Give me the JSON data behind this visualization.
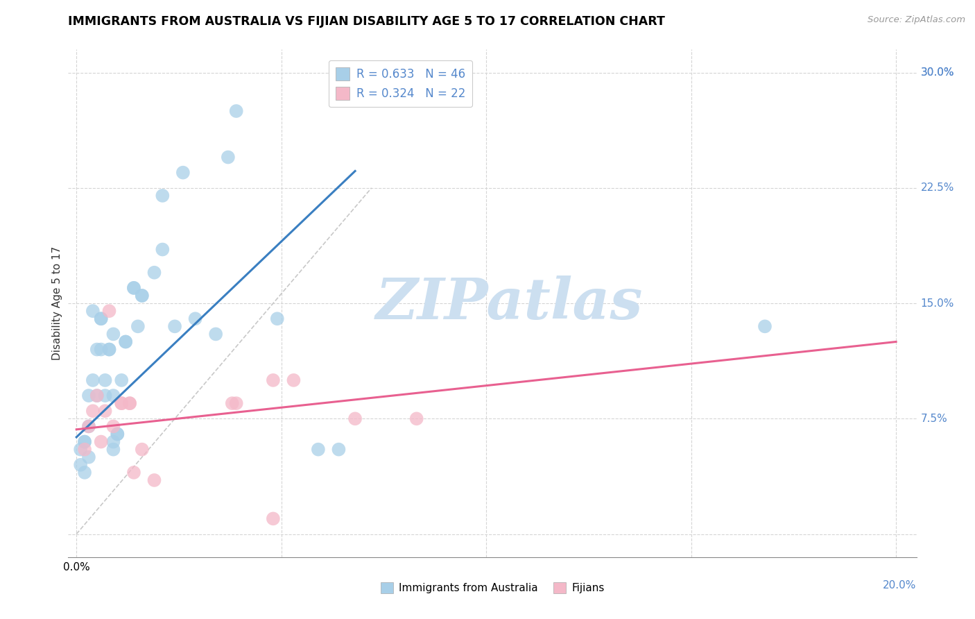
{
  "title": "IMMIGRANTS FROM AUSTRALIA VS FIJIAN DISABILITY AGE 5 TO 17 CORRELATION CHART",
  "source": "Source: ZipAtlas.com",
  "ylabel": "Disability Age 5 to 17",
  "xlim": [
    -0.002,
    0.205
  ],
  "ylim": [
    -0.015,
    0.315
  ],
  "legend1_label": "R = 0.633   N = 46",
  "legend2_label": "R = 0.324   N = 22",
  "legend_bottom1": "Immigrants from Australia",
  "legend_bottom2": "Fijians",
  "blue_color": "#a8cfe8",
  "pink_color": "#f4b8c8",
  "blue_line_color": "#3a7fc1",
  "pink_line_color": "#e86090",
  "diagonal_color": "#c8c8c8",
  "label_color": "#5588cc",
  "watermark_color": "#ccdff0",
  "blue_scatter": [
    [
      0.001,
      0.055
    ],
    [
      0.001,
      0.045
    ],
    [
      0.002,
      0.06
    ],
    [
      0.002,
      0.04
    ],
    [
      0.002,
      0.06
    ],
    [
      0.003,
      0.07
    ],
    [
      0.003,
      0.09
    ],
    [
      0.003,
      0.05
    ],
    [
      0.004,
      0.145
    ],
    [
      0.004,
      0.1
    ],
    [
      0.005,
      0.09
    ],
    [
      0.005,
      0.12
    ],
    [
      0.006,
      0.12
    ],
    [
      0.006,
      0.14
    ],
    [
      0.006,
      0.14
    ],
    [
      0.007,
      0.1
    ],
    [
      0.007,
      0.09
    ],
    [
      0.008,
      0.12
    ],
    [
      0.008,
      0.12
    ],
    [
      0.009,
      0.13
    ],
    [
      0.009,
      0.09
    ],
    [
      0.009,
      0.055
    ],
    [
      0.009,
      0.06
    ],
    [
      0.01,
      0.065
    ],
    [
      0.01,
      0.065
    ],
    [
      0.011,
      0.1
    ],
    [
      0.012,
      0.125
    ],
    [
      0.012,
      0.125
    ],
    [
      0.014,
      0.16
    ],
    [
      0.014,
      0.16
    ],
    [
      0.015,
      0.135
    ],
    [
      0.016,
      0.155
    ],
    [
      0.016,
      0.155
    ],
    [
      0.019,
      0.17
    ],
    [
      0.021,
      0.185
    ],
    [
      0.021,
      0.22
    ],
    [
      0.024,
      0.135
    ],
    [
      0.026,
      0.235
    ],
    [
      0.029,
      0.14
    ],
    [
      0.034,
      0.13
    ],
    [
      0.037,
      0.245
    ],
    [
      0.039,
      0.275
    ],
    [
      0.049,
      0.14
    ],
    [
      0.059,
      0.055
    ],
    [
      0.064,
      0.055
    ],
    [
      0.168,
      0.135
    ]
  ],
  "pink_scatter": [
    [
      0.002,
      0.055
    ],
    [
      0.003,
      0.07
    ],
    [
      0.004,
      0.08
    ],
    [
      0.005,
      0.09
    ],
    [
      0.006,
      0.06
    ],
    [
      0.007,
      0.08
    ],
    [
      0.008,
      0.145
    ],
    [
      0.009,
      0.07
    ],
    [
      0.011,
      0.085
    ],
    [
      0.011,
      0.085
    ],
    [
      0.013,
      0.085
    ],
    [
      0.013,
      0.085
    ],
    [
      0.014,
      0.04
    ],
    [
      0.016,
      0.055
    ],
    [
      0.019,
      0.035
    ],
    [
      0.038,
      0.085
    ],
    [
      0.039,
      0.085
    ],
    [
      0.048,
      0.1
    ],
    [
      0.053,
      0.1
    ],
    [
      0.068,
      0.075
    ],
    [
      0.083,
      0.075
    ],
    [
      0.048,
      0.01
    ]
  ],
  "blue_reg": [
    0.0,
    0.063,
    0.068,
    0.236
  ],
  "pink_reg": [
    0.0,
    0.068,
    0.2,
    0.125
  ],
  "diag": [
    0.0,
    0.0,
    0.072,
    0.225
  ],
  "x_tick_positions": [
    0.0,
    0.05,
    0.1,
    0.15,
    0.2
  ],
  "y_tick_positions": [
    0.0,
    0.075,
    0.15,
    0.225,
    0.3
  ],
  "y_tick_labels": [
    "",
    "7.5%",
    "15.0%",
    "22.5%",
    "30.0%"
  ]
}
